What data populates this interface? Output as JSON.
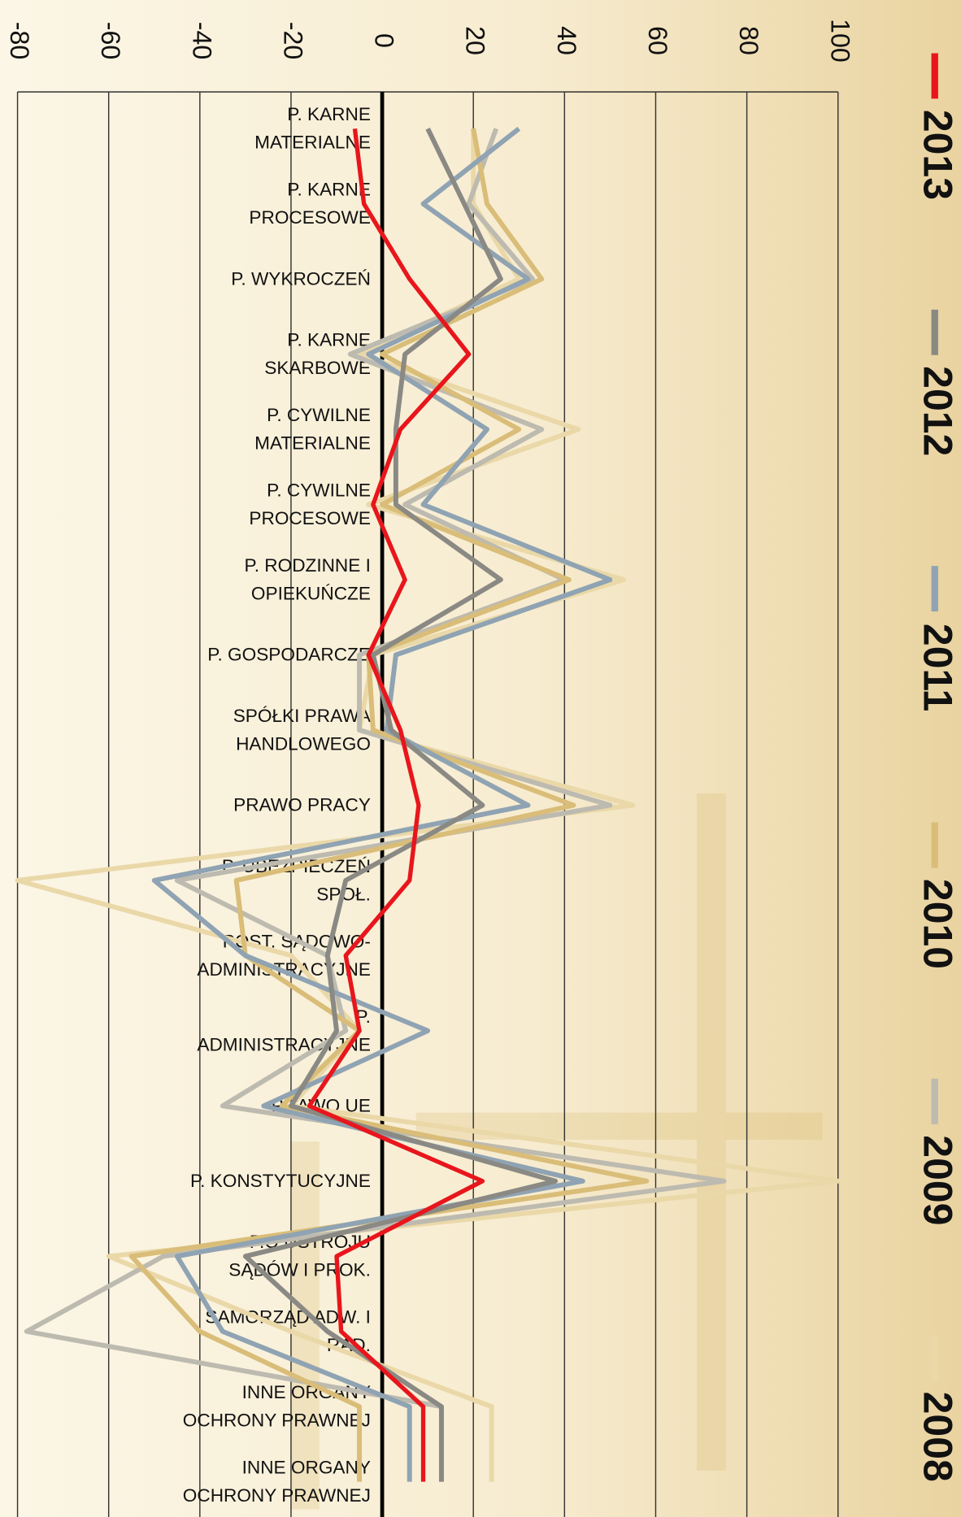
{
  "chart_data": {
    "type": "line",
    "categories": [
      "P. KARNE\nMATERIALNE",
      "P. KARNE\nPROCESOWE",
      "P. WYKROCZEŃ",
      "P. KARNE\nSKARBOWE",
      "P. CYWILNE\nMATERIALNE",
      "P. CYWILNE\nPROCESOWE",
      "P. RODZINNE I\nOPIEKUŃCZE",
      "P. GOSPODARCZE",
      "SPÓŁKI PRAWA\nHANDLOWEGO",
      "PRAWO PRACY",
      "P. UBEZPIECZEŃ\nSPOŁ.",
      "POST. SĄDOWO-\nADMINISTRACYJNE",
      "P.\nADMINISTRACYJNE",
      "PRAWO UE",
      "P. KONSTYTUCYJNE",
      "P.O USTROJU\nSĄDÓW I PROK.",
      "SAMORZĄD ADW. I\nRAD.",
      "INNE ORGANY\nOCHRONY PRAWNEJ",
      "INNE ORGANY\nOCHRONY PRAWNEJ"
    ],
    "series": [
      {
        "name": "2008",
        "color": "#ead8a8",
        "values": [
          20,
          20,
          30,
          -5,
          43,
          -3,
          53,
          -2,
          -5,
          55,
          -80,
          -20,
          -5,
          -20,
          100,
          -60,
          -20,
          24,
          24
        ]
      },
      {
        "name": "2009",
        "color": "#bdbab0",
        "values": [
          25,
          19,
          33,
          -7,
          35,
          5,
          40,
          -5,
          -5,
          50,
          -45,
          -12,
          -8,
          -35,
          75,
          -48,
          -78,
          13,
          13
        ]
      },
      {
        "name": "2010",
        "color": "#d9bd78",
        "values": [
          20,
          23,
          35,
          0,
          30,
          0,
          41,
          -3,
          -2,
          42,
          -32,
          -30,
          -5,
          -22,
          58,
          -55,
          -40,
          -5,
          -5
        ]
      },
      {
        "name": "2011",
        "color": "#8fa3b3",
        "values": [
          30,
          9,
          32,
          -3,
          23,
          9,
          50,
          3,
          1,
          32,
          -50,
          -30,
          10,
          -26,
          44,
          -45,
          -35,
          6,
          6
        ]
      },
      {
        "name": "2012",
        "color": "#8a8984",
        "values": [
          10,
          18,
          26,
          5,
          3,
          3,
          26,
          -2,
          2,
          22,
          -8,
          -12,
          -10,
          -20,
          38,
          -30,
          -12,
          13,
          13
        ]
      },
      {
        "name": "2013",
        "color": "#e8161c",
        "values": [
          -6,
          -4,
          6,
          19,
          4,
          -2,
          5,
          -3,
          4,
          8,
          6,
          -8,
          -5,
          -16,
          22,
          -10,
          -9,
          9,
          9
        ]
      }
    ],
    "xlim": [
      -80,
      100
    ],
    "xticks": [
      -80,
      -60,
      -40,
      -20,
      0,
      20,
      40,
      60,
      80,
      100
    ],
    "grid": true
  }
}
